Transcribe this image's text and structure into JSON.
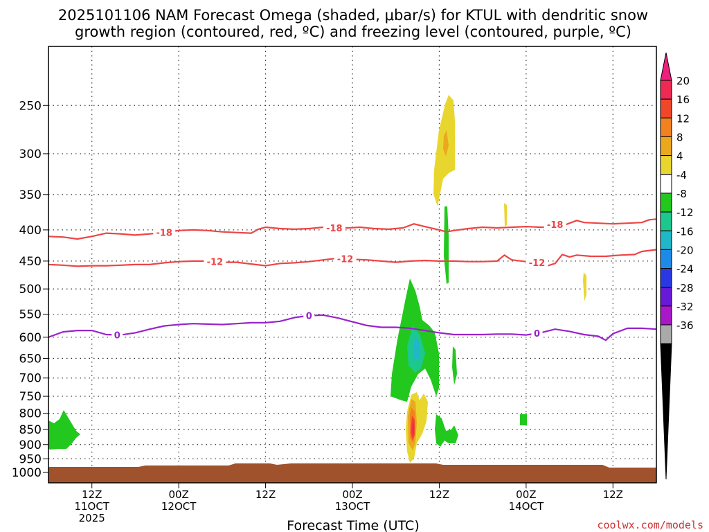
{
  "chart_data": {
    "type": "heatmap",
    "title_lines": [
      "2025101106 NAM Forecast Omega (shaded, μbar/s) for KTUL with dendritic snow",
      "growth region (contoured, red, ºC) and freezing level (contoured, purple, ºC)"
    ],
    "xlabel": "Forecast Time (UTC)",
    "credit": "coolwx.com/models",
    "y_ticks": [
      250,
      300,
      350,
      400,
      450,
      500,
      550,
      600,
      650,
      700,
      750,
      800,
      850,
      900,
      950,
      1000
    ],
    "ylim": [
      200,
      1040
    ],
    "y_scale": "log-pressure",
    "x_ticks": [
      {
        "hour": 6,
        "lines": [
          "12Z",
          "11OCT",
          "2025"
        ]
      },
      {
        "hour": 18,
        "lines": [
          "00Z",
          "12OCT"
        ]
      },
      {
        "hour": 30,
        "lines": [
          "12Z"
        ]
      },
      {
        "hour": 42,
        "lines": [
          "00Z",
          "13OCT"
        ]
      },
      {
        "hour": 54,
        "lines": [
          "12Z"
        ]
      },
      {
        "hour": 66,
        "lines": [
          "00Z",
          "14OCT"
        ]
      },
      {
        "hour": 78,
        "lines": [
          "12Z"
        ]
      }
    ],
    "xlim": [
      0,
      84
    ],
    "grid": true,
    "colorbar": {
      "labels": [
        "20",
        "16",
        "12",
        "8",
        "4",
        "-4",
        "-8",
        "-12",
        "-16",
        "-20",
        "-24",
        "-28",
        "-32",
        "-36"
      ],
      "colors": [
        "#ee2a52",
        "#f0462a",
        "#f28220",
        "#eaa81f",
        "#e8d62e",
        "#ffffff",
        "#22c81e",
        "#1cc88e",
        "#20b8c8",
        "#1e8ae8",
        "#2a38e4",
        "#6818d8",
        "#a818c8",
        "#aaaaaa"
      ],
      "top_triangle_color": "#ee1f7d",
      "bottom_triangle_color": "#000000"
    },
    "contours": [
      {
        "name": "-18",
        "color": "#ee4444",
        "label_positions_hour": [
          16,
          39.5,
          70
        ],
        "points": [
          [
            0,
            410
          ],
          [
            2,
            411
          ],
          [
            4,
            414
          ],
          [
            6,
            410
          ],
          [
            8,
            405
          ],
          [
            10,
            406
          ],
          [
            12,
            408
          ],
          [
            14,
            406
          ],
          [
            16,
            404
          ],
          [
            18,
            401
          ],
          [
            20,
            400
          ],
          [
            22,
            401
          ],
          [
            24,
            403
          ],
          [
            26,
            404
          ],
          [
            28,
            405
          ],
          [
            29,
            399
          ],
          [
            30,
            396
          ],
          [
            32,
            398
          ],
          [
            34,
            399
          ],
          [
            36,
            398
          ],
          [
            38,
            396
          ],
          [
            40,
            397
          ],
          [
            41.5,
            397
          ],
          [
            43,
            396
          ],
          [
            45,
            398
          ],
          [
            47,
            399
          ],
          [
            49,
            397
          ],
          [
            50.5,
            391
          ],
          [
            52,
            395
          ],
          [
            54,
            400
          ],
          [
            55,
            403
          ],
          [
            56,
            401
          ],
          [
            58,
            398
          ],
          [
            60,
            396
          ],
          [
            62,
            397
          ],
          [
            64,
            396
          ],
          [
            66,
            395
          ],
          [
            68,
            396
          ],
          [
            69,
            396
          ],
          [
            70,
            392
          ],
          [
            71,
            394
          ],
          [
            72,
            390
          ],
          [
            73,
            386
          ],
          [
            74,
            389
          ],
          [
            76,
            390
          ],
          [
            78,
            391
          ],
          [
            80,
            390
          ],
          [
            82,
            389
          ],
          [
            83,
            385
          ],
          [
            84,
            384
          ]
        ]
      },
      {
        "name": "-12",
        "color": "#ee4444",
        "label_positions_hour": [
          23,
          41,
          67.5
        ],
        "points": [
          [
            0,
            456
          ],
          [
            2,
            457
          ],
          [
            4,
            459
          ],
          [
            6,
            458
          ],
          [
            8,
            458
          ],
          [
            10,
            457
          ],
          [
            12,
            456
          ],
          [
            14,
            456
          ],
          [
            16,
            453
          ],
          [
            18,
            451
          ],
          [
            20,
            450
          ],
          [
            22,
            450
          ],
          [
            24,
            452
          ],
          [
            26,
            452
          ],
          [
            28,
            455
          ],
          [
            30,
            458
          ],
          [
            32,
            454
          ],
          [
            34,
            453
          ],
          [
            36,
            451
          ],
          [
            38,
            448
          ],
          [
            40,
            445
          ],
          [
            42,
            447
          ],
          [
            44,
            448
          ],
          [
            46,
            450
          ],
          [
            48,
            452
          ],
          [
            50,
            450
          ],
          [
            52,
            449
          ],
          [
            54,
            450
          ],
          [
            56,
            450
          ],
          [
            58,
            451
          ],
          [
            60,
            451
          ],
          [
            62,
            450
          ],
          [
            63,
            440
          ],
          [
            64,
            448
          ],
          [
            66,
            451
          ],
          [
            68,
            453
          ],
          [
            69,
            458
          ],
          [
            70,
            454
          ],
          [
            71,
            439
          ],
          [
            72,
            443
          ],
          [
            73,
            440
          ],
          [
            75,
            442
          ],
          [
            77,
            442
          ],
          [
            79,
            440
          ],
          [
            81,
            439
          ],
          [
            82,
            434
          ],
          [
            84,
            431
          ]
        ]
      },
      {
        "name": "0",
        "color": "#9922cc",
        "label_positions_hour": [
          9.5,
          36,
          67.5
        ],
        "points": [
          [
            0,
            600
          ],
          [
            2,
            588
          ],
          [
            4,
            585
          ],
          [
            6,
            585
          ],
          [
            8,
            594
          ],
          [
            10,
            595
          ],
          [
            12,
            590
          ],
          [
            14,
            582
          ],
          [
            16,
            575
          ],
          [
            18,
            572
          ],
          [
            20,
            570
          ],
          [
            22,
            571
          ],
          [
            24,
            572
          ],
          [
            26,
            570
          ],
          [
            28,
            568
          ],
          [
            30,
            568
          ],
          [
            32,
            565
          ],
          [
            34,
            557
          ],
          [
            36,
            553
          ],
          [
            38,
            552
          ],
          [
            40,
            558
          ],
          [
            42,
            566
          ],
          [
            44,
            574
          ],
          [
            46,
            578
          ],
          [
            48,
            578
          ],
          [
            50,
            580
          ],
          [
            52,
            585
          ],
          [
            54,
            590
          ],
          [
            56,
            594
          ],
          [
            58,
            594
          ],
          [
            60,
            594
          ],
          [
            62,
            593
          ],
          [
            64,
            593
          ],
          [
            66,
            595
          ],
          [
            68,
            590
          ],
          [
            70,
            582
          ],
          [
            72,
            587
          ],
          [
            74,
            594
          ],
          [
            76,
            598
          ],
          [
            77,
            607
          ],
          [
            78,
            592
          ],
          [
            80,
            580
          ],
          [
            82,
            580
          ],
          [
            84,
            582
          ]
        ]
      }
    ]
  }
}
